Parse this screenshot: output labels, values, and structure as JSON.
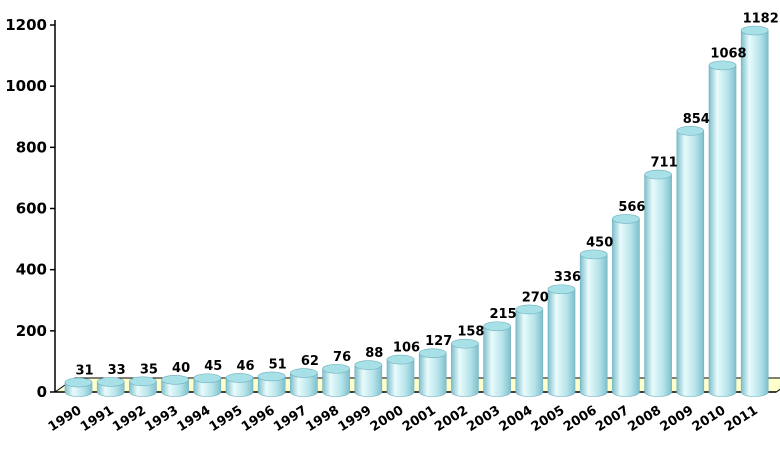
{
  "chart_data": {
    "type": "bar",
    "style": "3d-cylinder",
    "categories": [
      "1990",
      "1991",
      "1992",
      "1993",
      "1994",
      "1995",
      "1996",
      "1997",
      "1998",
      "1999",
      "2000",
      "2001",
      "2002",
      "2003",
      "2004",
      "2005",
      "2006",
      "2007",
      "2008",
      "2009",
      "2010",
      "2011"
    ],
    "values": [
      31,
      33,
      35,
      40,
      45,
      46,
      51,
      62,
      76,
      88,
      106,
      127,
      158,
      215,
      270,
      336,
      450,
      566,
      711,
      854,
      1068,
      1182
    ],
    "data_labels": [
      "31",
      "33",
      "35",
      "40",
      "45",
      "46",
      "51",
      "62",
      "76",
      "88",
      "106",
      "127",
      "158",
      "215",
      "270",
      "336",
      "450",
      "566",
      "711",
      "854",
      "1068",
      "1182"
    ],
    "title": "",
    "xlabel": "",
    "ylabel": "",
    "ylim": [
      0,
      1200
    ],
    "yticks": [
      "0",
      "200",
      "400",
      "600",
      "800",
      "1000",
      "1200"
    ],
    "grid": false,
    "legend": "none",
    "colors": {
      "bar_light": "#e8fbfc",
      "bar_mid": "#b5e3ea",
      "bar_dark": "#7fbfcc",
      "bar_top": "#a7e0e6",
      "floor": "#ffffcc",
      "axis": "#000000"
    }
  }
}
